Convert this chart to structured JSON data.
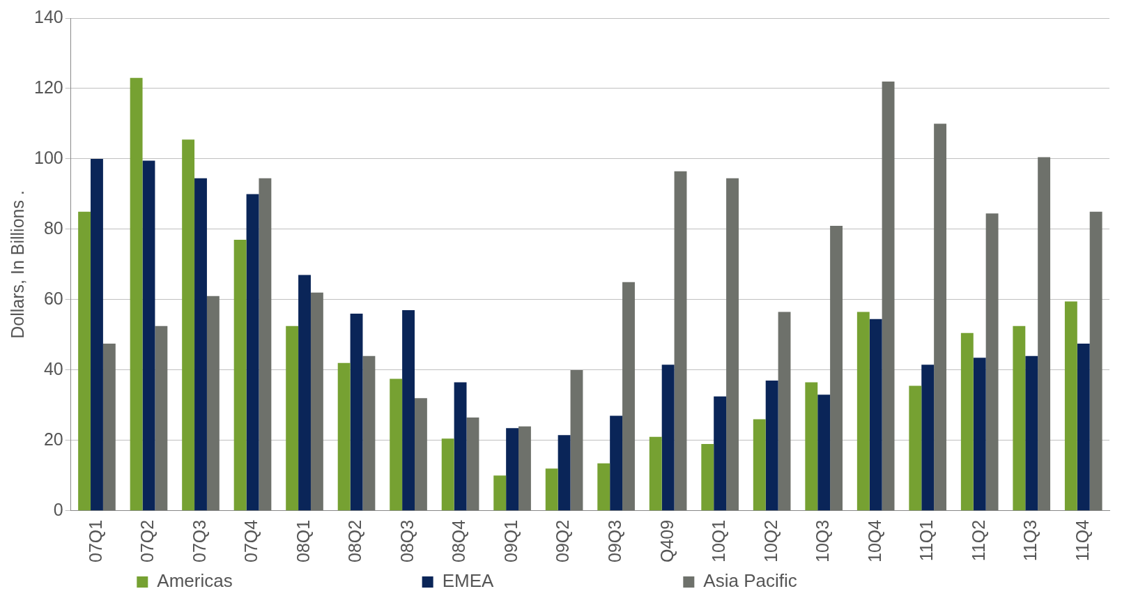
{
  "chart_data": {
    "type": "bar",
    "ylabel": "Dollars, In Billions .",
    "categories": [
      "07Q1",
      "07Q2",
      "07Q3",
      "07Q4",
      "08Q1",
      "08Q2",
      "08Q3",
      "08Q4",
      "09Q1",
      "09Q2",
      "09Q3",
      "Q409",
      "10Q1",
      "10Q2",
      "10Q3",
      "10Q4",
      "11Q1",
      "11Q2",
      "11Q3",
      "11Q4"
    ],
    "series": [
      {
        "name": "Americas",
        "color": "#76a132",
        "values": [
          85,
          123,
          105.5,
          77,
          52.5,
          42,
          37.5,
          20.5,
          10,
          12,
          13.5,
          21,
          19,
          26,
          36.5,
          56.5,
          35.5,
          50.5,
          52.5,
          59.5
        ]
      },
      {
        "name": "EMEA",
        "color": "#0a2558",
        "values": [
          100,
          99.5,
          94.5,
          90,
          67,
          56,
          57,
          36.5,
          23.5,
          21.5,
          27,
          41.5,
          32.5,
          37,
          33,
          54.5,
          41.5,
          43.5,
          44,
          47.5
        ]
      },
      {
        "name": "Asia Pacific",
        "color": "#6e716b",
        "values": [
          47.5,
          52.5,
          61,
          94.5,
          62,
          44,
          32,
          26.5,
          24,
          40,
          65,
          96.5,
          94.5,
          56.5,
          81,
          122,
          110,
          84.5,
          100.5,
          85
        ]
      }
    ],
    "ylim": [
      0,
      140
    ],
    "yticks": [
      0,
      20,
      40,
      60,
      80,
      100,
      120,
      140
    ],
    "grid": "y",
    "legend": "bottom"
  }
}
